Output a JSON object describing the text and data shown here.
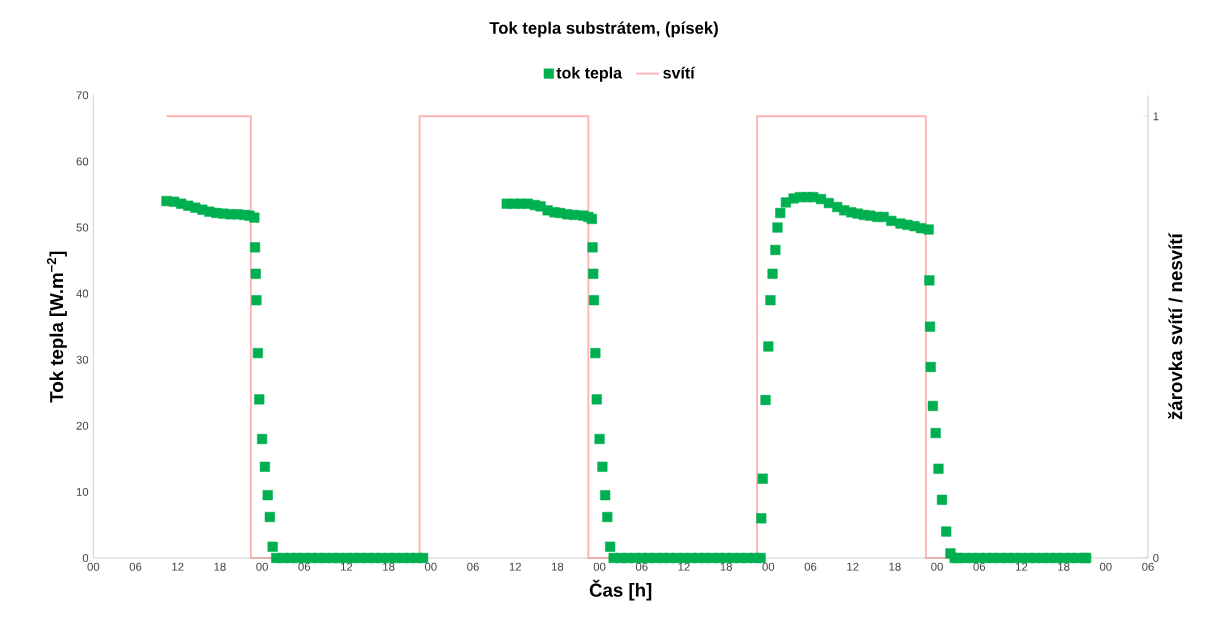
{
  "chart_data": {
    "type": "scatter",
    "title": "Tok tepla substrátem, (písek)",
    "xlabel": "Čas [h]",
    "ylabel": "Tok tepla [W.m$^{−2}$]",
    "y2label": "žárovka svítí / nesvítí",
    "xlim": [
      0,
      150
    ],
    "xticks": [
      {
        "value": 0,
        "label": "00"
      },
      {
        "value": 6,
        "label": "06"
      },
      {
        "value": 12,
        "label": "12"
      },
      {
        "value": 18,
        "label": "18"
      },
      {
        "value": 24,
        "label": "00"
      },
      {
        "value": 30,
        "label": "06"
      },
      {
        "value": 36,
        "label": "12"
      },
      {
        "value": 42,
        "label": "18"
      },
      {
        "value": 48,
        "label": "00"
      },
      {
        "value": 54,
        "label": "06"
      },
      {
        "value": 60,
        "label": "12"
      },
      {
        "value": 66,
        "label": "18"
      },
      {
        "value": 72,
        "label": "00"
      },
      {
        "value": 78,
        "label": "06"
      },
      {
        "value": 84,
        "label": "12"
      },
      {
        "value": 90,
        "label": "18"
      },
      {
        "value": 96,
        "label": "00"
      },
      {
        "value": 102,
        "label": "06"
      },
      {
        "value": 108,
        "label": "12"
      },
      {
        "value": 114,
        "label": "18"
      },
      {
        "value": 120,
        "label": "00"
      },
      {
        "value": 126,
        "label": "06"
      },
      {
        "value": 132,
        "label": "12"
      },
      {
        "value": 138,
        "label": "18"
      },
      {
        "value": 144,
        "label": "00"
      },
      {
        "value": 150,
        "label": "06"
      }
    ],
    "ylim": [
      0,
      70
    ],
    "yticks": [
      0,
      10,
      20,
      30,
      40,
      50,
      60,
      70
    ],
    "y2lim": [
      0,
      1.0475
    ],
    "y2ticks": [
      0,
      1
    ],
    "legend": "top",
    "marker": "square",
    "series": [
      {
        "name": "tok tepla",
        "color": "#00b050",
        "x": [
          10.4,
          11.5,
          12.5,
          13.5,
          14.5,
          15.5,
          16.5,
          17.5,
          18.5,
          19.5,
          20.5,
          21.5,
          22.2,
          22.9,
          23.0,
          23.1,
          23.2,
          23.4,
          23.6,
          24.0,
          24.4,
          24.8,
          25.1,
          25.5,
          26,
          27,
          28,
          29,
          30,
          31,
          32,
          33,
          34,
          35,
          36,
          37,
          38,
          39,
          40,
          41,
          42,
          43,
          44,
          45,
          46,
          46.9,
          58.8,
          59.8,
          60.8,
          61.8,
          62.8,
          63.6,
          64.6,
          65.6,
          66.4,
          67.4,
          68.4,
          69.7,
          70.4,
          70.9,
          71.0,
          71.1,
          71.2,
          71.4,
          71.6,
          72.0,
          72.4,
          72.8,
          73.1,
          73.5,
          74,
          75,
          76,
          77,
          78,
          79,
          80,
          81,
          82,
          83,
          84,
          85,
          86,
          87,
          88,
          89,
          90,
          91,
          92,
          93,
          94,
          94.9,
          95.0,
          95.2,
          95.6,
          96.0,
          96.3,
          96.6,
          97.0,
          97.3,
          97.7,
          98.5,
          99.6,
          100.5,
          101.5,
          102.4,
          103.5,
          104.6,
          105.8,
          106.8,
          107.8,
          108.7,
          109.6,
          110.5,
          111.5,
          112.4,
          113.5,
          114.8,
          115.8,
          116.8,
          117.7,
          118.8,
          118.9,
          119.0,
          119.1,
          119.4,
          119.8,
          120.2,
          120.7,
          121.3,
          121.9,
          122.5,
          123,
          124,
          125,
          126,
          127,
          128,
          129,
          130,
          131,
          132,
          133,
          134,
          135,
          136,
          137,
          138,
          139,
          140,
          141,
          141.2
        ],
        "values": [
          54.0,
          53.9,
          53.6,
          53.3,
          53.0,
          52.7,
          52.4,
          52.2,
          52.1,
          52.0,
          52.0,
          51.9,
          51.8,
          51.5,
          47,
          43,
          39,
          31,
          24,
          18,
          13.8,
          9.5,
          6.2,
          1.7,
          0,
          0,
          0,
          0,
          0,
          0,
          0,
          0,
          0,
          0,
          0,
          0,
          0,
          0,
          0,
          0,
          0,
          0,
          0,
          0,
          0,
          0,
          53.6,
          53.6,
          53.6,
          53.6,
          53.4,
          53.2,
          52.6,
          52.3,
          52.2,
          52.0,
          51.9,
          51.8,
          51.6,
          51.3,
          47,
          43,
          39,
          31,
          24,
          18,
          13.8,
          9.5,
          6.2,
          1.7,
          0,
          0,
          0,
          0,
          0,
          0,
          0,
          0,
          0,
          0,
          0,
          0,
          0,
          0,
          0,
          0,
          0,
          0,
          0,
          0,
          0,
          0,
          6,
          12,
          23.9,
          32,
          39,
          43,
          46.6,
          50,
          52.2,
          53.8,
          54.4,
          54.6,
          54.6,
          54.6,
          54.3,
          53.7,
          53.1,
          52.6,
          52.3,
          52.1,
          51.9,
          51.8,
          51.6,
          51.6,
          51.0,
          50.6,
          50.4,
          50.2,
          49.9,
          49.7,
          42,
          35,
          28.9,
          23,
          18.9,
          13.5,
          8.8,
          4,
          0.7,
          0,
          0,
          0,
          0,
          0,
          0,
          0,
          0,
          0,
          0,
          0,
          0,
          0,
          0,
          0,
          0,
          0,
          0,
          0,
          0,
          0
        ]
      },
      {
        "name": "svítí",
        "type": "line",
        "axis": "y2",
        "color": "#ffb3b3",
        "marker": "none",
        "x": [
          10.4,
          22.4,
          22.4,
          46.4,
          46.4,
          70.4,
          70.4,
          94.4,
          94.4,
          118.4,
          118.4,
          141.2
        ],
        "values": [
          1,
          1,
          0,
          0,
          1,
          1,
          0,
          0,
          1,
          1,
          0,
          0
        ]
      }
    ]
  }
}
